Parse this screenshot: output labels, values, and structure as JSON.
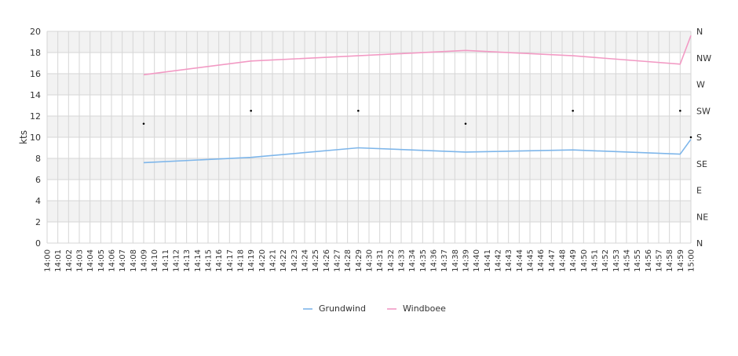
{
  "chart_data": {
    "type": "line",
    "ylabel": "kts",
    "ylim": [
      0,
      20
    ],
    "y_ticks": [
      0,
      2,
      4,
      6,
      8,
      10,
      12,
      14,
      16,
      18,
      20
    ],
    "x_minutes_range": [
      0,
      60
    ],
    "x_tick_labels": [
      "14:00",
      "14:01",
      "14:02",
      "14:03",
      "14:04",
      "14:05",
      "14:06",
      "14:07",
      "14:08",
      "14:09",
      "14:10",
      "14:11",
      "14:12",
      "14:13",
      "14:14",
      "14:15",
      "14:16",
      "14:17",
      "14:18",
      "14:19",
      "14:20",
      "14:21",
      "14:22",
      "14:23",
      "14:24",
      "14:25",
      "14:26",
      "14:27",
      "14:28",
      "14:29",
      "14:30",
      "14:31",
      "14:32",
      "14:33",
      "14:34",
      "14:35",
      "14:36",
      "14:37",
      "14:38",
      "14:39",
      "14:40",
      "14:41",
      "14:42",
      "14:43",
      "14:44",
      "14:45",
      "14:46",
      "14:47",
      "14:48",
      "14:49",
      "14:50",
      "14:51",
      "14:52",
      "14:53",
      "14:54",
      "14:55",
      "14:56",
      "14:57",
      "14:58",
      "14:59",
      "15:00"
    ],
    "direction_axis": {
      "labels": [
        "N",
        "NE",
        "E",
        "SE",
        "S",
        "SW",
        "W",
        "NW",
        "N"
      ],
      "degrees_range": [
        0,
        360
      ]
    },
    "series": [
      {
        "name": "Grundwind",
        "color": "#7eb6ea",
        "x": [
          "14:09",
          "14:19",
          "14:29",
          "14:39",
          "14:49",
          "14:59",
          "15:00"
        ],
        "values": [
          7.6,
          8.1,
          9.0,
          8.6,
          8.8,
          8.4,
          9.8
        ]
      },
      {
        "name": "Windboee",
        "color": "#f29ac4",
        "x": [
          "14:09",
          "14:19",
          "14:29",
          "14:39",
          "14:49",
          "14:59",
          "15:00"
        ],
        "values": [
          15.9,
          17.2,
          17.7,
          18.2,
          17.7,
          16.9,
          19.6
        ]
      }
    ],
    "direction_points": {
      "x": [
        "14:09",
        "14:19",
        "14:29",
        "14:39",
        "14:49",
        "14:59",
        "15:00"
      ],
      "degrees": [
        203,
        225,
        225,
        203,
        225,
        225,
        180
      ]
    },
    "legend_placement": "bottom-center",
    "grid": true
  }
}
